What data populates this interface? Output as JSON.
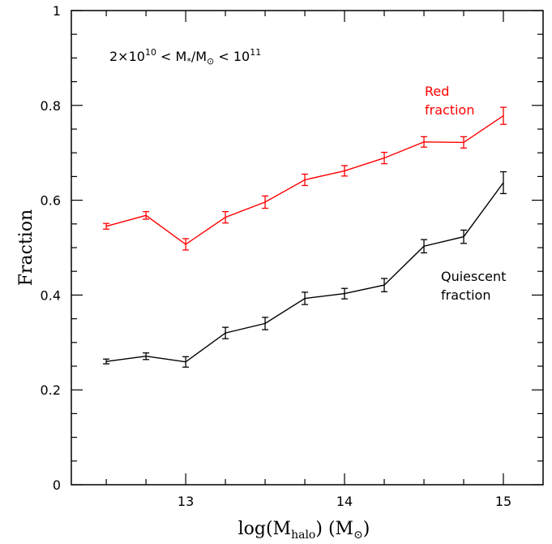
{
  "chart_data": {
    "type": "line",
    "title": "",
    "panel_label": {
      "prefix": "2×10",
      "exp1": "10",
      "middle": " < M",
      "sub1": "*",
      "slash": "/M",
      "sub2": "⊙",
      "suffix": " < 10",
      "exp2": "11"
    },
    "xlabel": {
      "prefix": "log(M",
      "sub": "halo",
      "suffix": ") (M",
      "sub2": "⊙",
      "close": ")"
    },
    "ylabel": "Fraction",
    "xlim": [
      12.28,
      15.25
    ],
    "ylim": [
      0,
      1
    ],
    "x_ticks": [
      "13",
      "14",
      "15"
    ],
    "y_ticks": [
      "0",
      "0.2",
      "0.4",
      "0.6",
      "0.8",
      "1"
    ],
    "grid": false,
    "x": [
      12.5,
      12.75,
      13.0,
      13.25,
      13.5,
      13.75,
      14.0,
      14.25,
      14.5,
      14.75,
      15.0
    ],
    "series": [
      {
        "name": "Red fraction",
        "color": "#ff0000",
        "label_lines": [
          "Red",
          "fraction"
        ],
        "values": [
          0.545,
          0.568,
          0.507,
          0.564,
          0.596,
          0.643,
          0.662,
          0.689,
          0.723,
          0.722,
          0.778
        ],
        "errors": [
          0.006,
          0.008,
          0.012,
          0.012,
          0.013,
          0.012,
          0.011,
          0.012,
          0.011,
          0.012,
          0.018
        ]
      },
      {
        "name": "Quiescent fraction",
        "color": "#000000",
        "label_lines": [
          "Quiescent",
          "fraction"
        ],
        "values": [
          0.26,
          0.271,
          0.259,
          0.32,
          0.34,
          0.393,
          0.403,
          0.421,
          0.503,
          0.523,
          0.637
        ],
        "errors": [
          0.005,
          0.007,
          0.011,
          0.012,
          0.013,
          0.013,
          0.011,
          0.014,
          0.014,
          0.014,
          0.023
        ]
      }
    ]
  }
}
